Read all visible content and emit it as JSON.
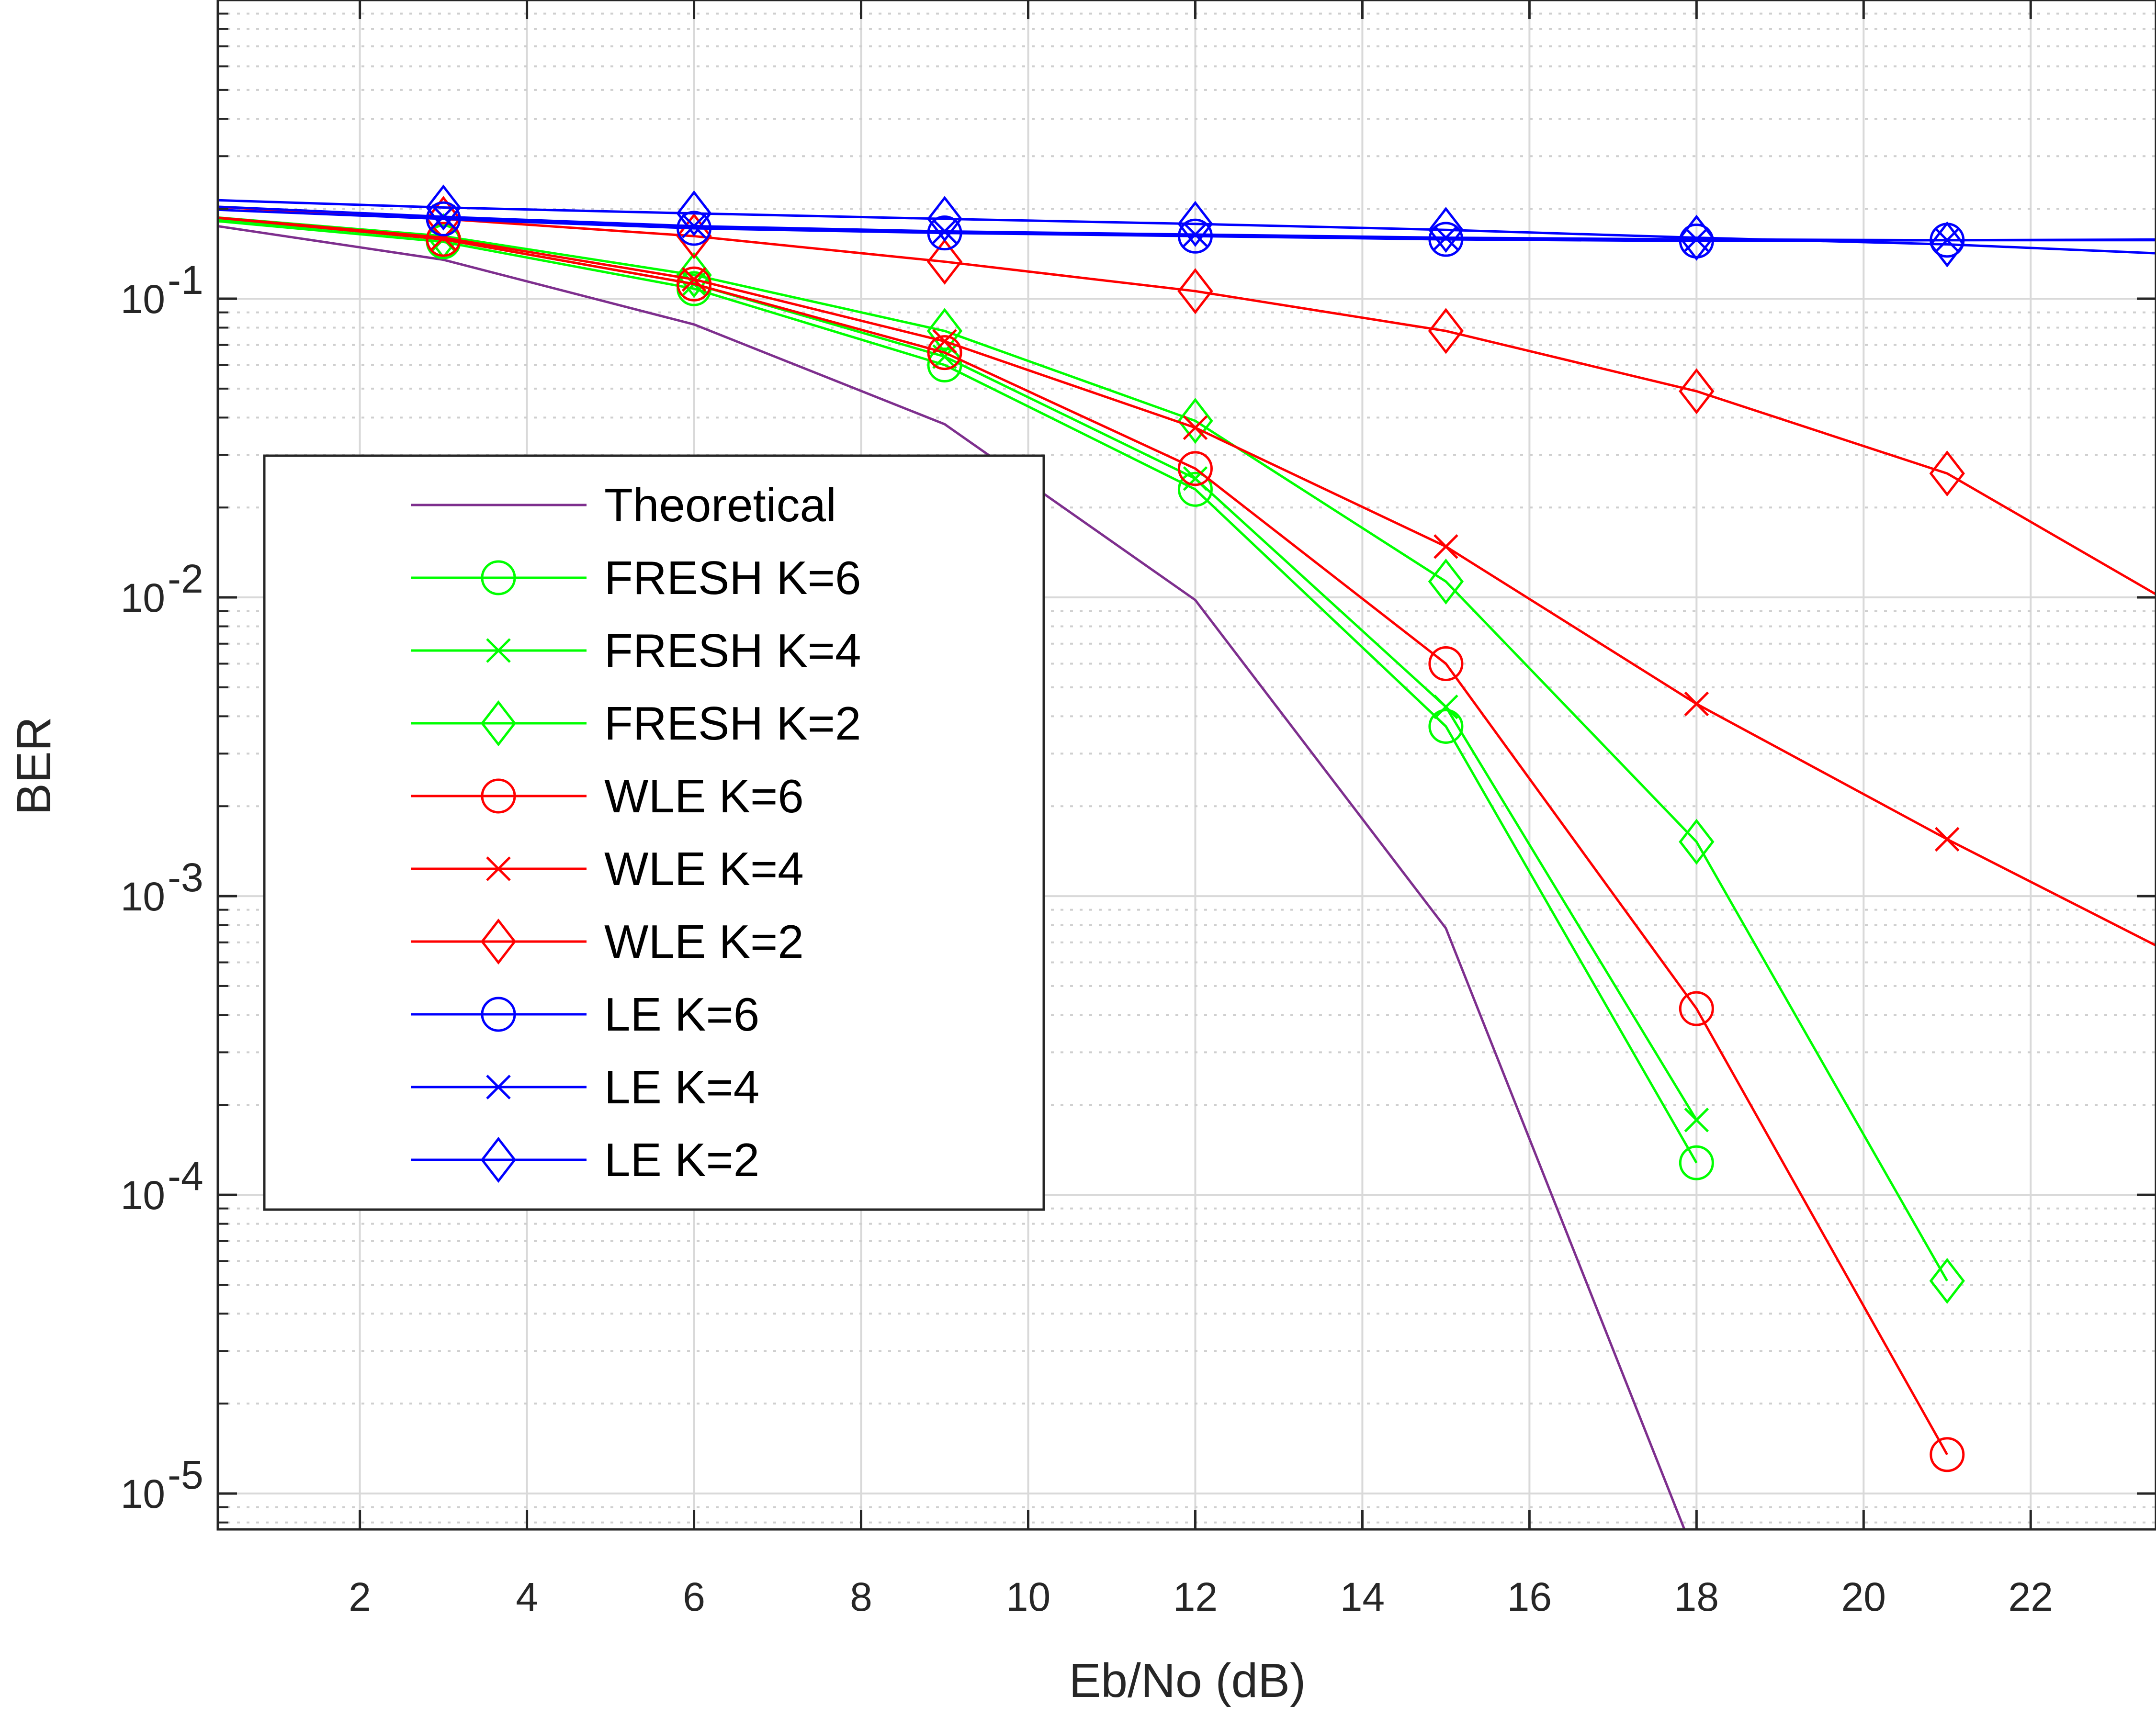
{
  "chart_data": {
    "type": "line",
    "title": "",
    "xlabel": "Eb/No (dB)",
    "ylabel": "BER",
    "xlim": [
      0.3,
      23.5
    ],
    "ylim_log10": [
      -5.12,
      -0.0
    ],
    "yscale": "log",
    "grid": true,
    "minor_grid": true,
    "legend_position": "center-left",
    "xticks": [
      "2",
      "4",
      "6",
      "8",
      "10",
      "12",
      "14",
      "16",
      "18",
      "20",
      "22"
    ],
    "xtick_values": [
      2,
      4,
      6,
      8,
      10,
      12,
      14,
      16,
      18,
      20,
      22
    ],
    "yticks": [
      {
        "base": "10",
        "exp": "-1",
        "value": 0.1
      },
      {
        "base": "10",
        "exp": "-2",
        "value": 0.01
      },
      {
        "base": "10",
        "exp": "-3",
        "value": 0.001
      },
      {
        "base": "10",
        "exp": "-4",
        "value": 0.0001
      },
      {
        "base": "10",
        "exp": "-5",
        "value": 1e-05
      }
    ],
    "series": [
      {
        "name": "Theoretical",
        "color": "#7E2F8E",
        "marker": "none",
        "x": [
          0,
          3,
          6,
          9,
          12,
          15,
          18
        ],
        "y": [
          0.18,
          0.135,
          0.082,
          0.038,
          0.0098,
          0.00078,
          6e-06
        ]
      },
      {
        "name": "FRESH K=6",
        "color": "#00FF00",
        "marker": "circle",
        "x": [
          0,
          3,
          6,
          9,
          12,
          15,
          18
        ],
        "y": [
          0.185,
          0.155,
          0.108,
          0.06,
          0.023,
          0.0037,
          0.000128
        ]
      },
      {
        "name": "FRESH K=4",
        "color": "#00FF00",
        "marker": "x",
        "x": [
          0,
          3,
          6,
          9,
          12,
          15,
          18
        ],
        "y": [
          0.188,
          0.158,
          0.112,
          0.064,
          0.025,
          0.0043,
          0.000178
        ]
      },
      {
        "name": "FRESH K=2",
        "color": "#00FF00",
        "marker": "diamond",
        "x": [
          0,
          3,
          6,
          9,
          12,
          15,
          18,
          21
        ],
        "y": [
          0.19,
          0.162,
          0.12,
          0.078,
          0.039,
          0.0113,
          0.00152,
          5.15e-05
        ]
      },
      {
        "name": "WLE K=6",
        "color": "#FF0000",
        "marker": "circle",
        "x": [
          0,
          3,
          6,
          9,
          12,
          15,
          18,
          21
        ],
        "y": [
          0.19,
          0.158,
          0.112,
          0.066,
          0.027,
          0.006,
          0.00042,
          1.35e-05
        ]
      },
      {
        "name": "WLE K=4",
        "color": "#FF0000",
        "marker": "x",
        "x": [
          0,
          3,
          6,
          9,
          12,
          15,
          18,
          21,
          24
        ],
        "y": [
          0.19,
          0.16,
          0.116,
          0.072,
          0.037,
          0.0148,
          0.0044,
          0.00155,
          0.00058
        ]
      },
      {
        "name": "WLE K=2",
        "color": "#FF0000",
        "marker": "diamond",
        "x": [
          0,
          3,
          6,
          9,
          12,
          15,
          18,
          21,
          24
        ],
        "y": [
          0.205,
          0.185,
          0.162,
          0.133,
          0.106,
          0.078,
          0.049,
          0.026,
          0.0085
        ]
      },
      {
        "name": "LE K=6",
        "color": "#0000FF",
        "marker": "circle",
        "x": [
          0,
          3,
          6,
          9,
          12,
          15,
          18,
          21,
          24
        ],
        "y": [
          0.2,
          0.185,
          0.172,
          0.166,
          0.162,
          0.158,
          0.156,
          0.157,
          0.158
        ]
      },
      {
        "name": "LE K=4",
        "color": "#0000FF",
        "marker": "x",
        "x": [
          0,
          3,
          6,
          9,
          12,
          15,
          18,
          21,
          24
        ],
        "y": [
          0.205,
          0.188,
          0.175,
          0.168,
          0.164,
          0.16,
          0.158,
          0.157,
          0.157
        ]
      },
      {
        "name": "LE K=2",
        "color": "#0000FF",
        "marker": "diamond",
        "x": [
          0,
          3,
          6,
          9,
          12,
          15,
          18,
          21,
          24
        ],
        "y": [
          0.215,
          0.202,
          0.193,
          0.185,
          0.178,
          0.17,
          0.16,
          0.152,
          0.14
        ]
      }
    ]
  }
}
